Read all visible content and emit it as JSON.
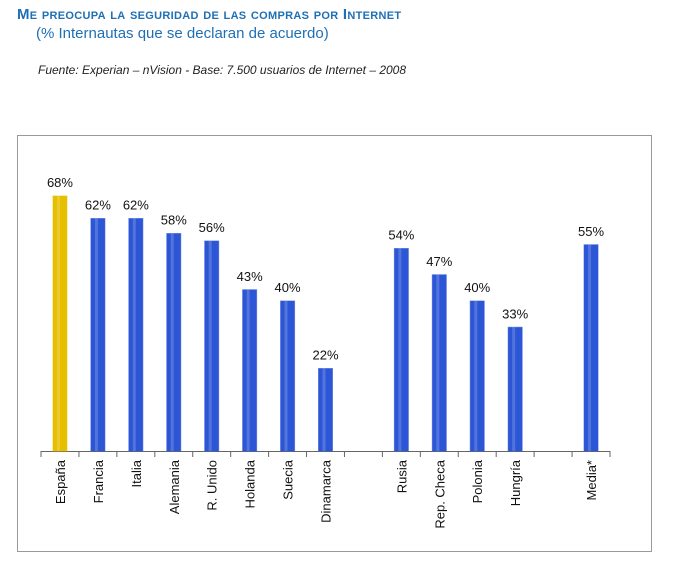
{
  "chart_data": {
    "type": "bar",
    "title": "Me preocupa la seguridad de las compras por Internet",
    "subtitle": "(% Internautas que se declaran de acuerdo)",
    "source": "Fuente: Experian – nVision - Base: 7.500 usuarios de Internet – 2008",
    "categories": [
      "España",
      "Francia",
      "Italia",
      "Alemania",
      "R. Unido",
      "Holanda",
      "Suecia",
      "Dinamarca",
      null,
      "Rusia",
      "Rep. Checa",
      "Polonia",
      "Hungría",
      null,
      "Media*"
    ],
    "values": [
      68,
      62,
      62,
      58,
      56,
      43,
      40,
      22,
      null,
      54,
      47,
      40,
      33,
      null,
      55
    ],
    "value_labels": [
      "68%",
      "62%",
      "62%",
      "58%",
      "56%",
      "43%",
      "40%",
      "22%",
      null,
      "54%",
      "47%",
      "40%",
      "33%",
      null,
      "55%"
    ],
    "colors": [
      "#e6bf00",
      "#2d56d6",
      "#2d56d6",
      "#2d56d6",
      "#2d56d6",
      "#2d56d6",
      "#2d56d6",
      "#2d56d6",
      null,
      "#2d56d6",
      "#2d56d6",
      "#2d56d6",
      "#2d56d6",
      null,
      "#2d56d6"
    ]
  }
}
